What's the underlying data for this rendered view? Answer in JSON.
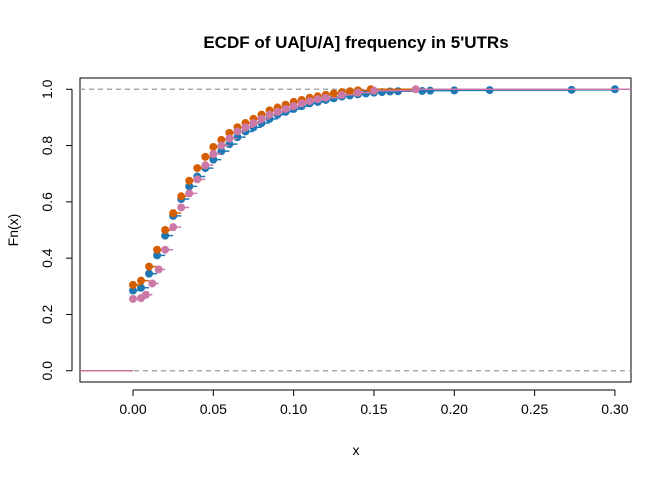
{
  "chart_data": {
    "type": "scatter",
    "subtype": "ecdf-step",
    "title": "ECDF of UA[U/A] frequency in 5'UTRs",
    "xlabel": "x",
    "ylabel": "Fn(x)",
    "xlim": [
      -0.033,
      0.31
    ],
    "ylim": [
      -0.04,
      1.04
    ],
    "xticks": [
      0.0,
      0.05,
      0.1,
      0.15,
      0.2,
      0.25,
      0.3
    ],
    "xtick_labels": [
      "0.00",
      "0.05",
      "0.10",
      "0.15",
      "0.20",
      "0.25",
      "0.30"
    ],
    "yticks": [
      0.0,
      0.2,
      0.4,
      0.6,
      0.8,
      1.0
    ],
    "ytick_labels": [
      "0.0",
      "0.2",
      "0.4",
      "0.6",
      "0.8",
      "1.0"
    ],
    "reference_lines": [
      0.0,
      1.0
    ],
    "grid": false,
    "legend": "none",
    "series": [
      {
        "color": "#1f77b4",
        "x": [
          0.0,
          0.005,
          0.01,
          0.015,
          0.02,
          0.025,
          0.03,
          0.035,
          0.04,
          0.045,
          0.05,
          0.055,
          0.06,
          0.065,
          0.07,
          0.075,
          0.08,
          0.085,
          0.09,
          0.095,
          0.1,
          0.105,
          0.11,
          0.115,
          0.12,
          0.125,
          0.13,
          0.135,
          0.14,
          0.145,
          0.15,
          0.155,
          0.16,
          0.165,
          0.18,
          0.185,
          0.2,
          0.222,
          0.273,
          0.3
        ],
        "y": [
          0.285,
          0.295,
          0.345,
          0.41,
          0.48,
          0.55,
          0.61,
          0.655,
          0.69,
          0.72,
          0.75,
          0.78,
          0.805,
          0.83,
          0.85,
          0.865,
          0.88,
          0.895,
          0.91,
          0.92,
          0.93,
          0.94,
          0.95,
          0.955,
          0.962,
          0.968,
          0.974,
          0.978,
          0.982,
          0.985,
          0.988,
          0.99,
          0.992,
          0.993,
          0.994,
          0.995,
          0.996,
          0.997,
          0.998,
          1.0
        ]
      },
      {
        "color": "#d55e00",
        "x": [
          0.0,
          0.005,
          0.01,
          0.015,
          0.02,
          0.025,
          0.03,
          0.035,
          0.04,
          0.045,
          0.05,
          0.055,
          0.06,
          0.065,
          0.07,
          0.075,
          0.08,
          0.085,
          0.09,
          0.095,
          0.1,
          0.105,
          0.11,
          0.115,
          0.12,
          0.125,
          0.13,
          0.135,
          0.14,
          0.148
        ],
        "y": [
          0.305,
          0.32,
          0.37,
          0.43,
          0.5,
          0.56,
          0.62,
          0.675,
          0.72,
          0.76,
          0.795,
          0.82,
          0.845,
          0.865,
          0.88,
          0.895,
          0.91,
          0.925,
          0.935,
          0.945,
          0.955,
          0.962,
          0.97,
          0.975,
          0.98,
          0.985,
          0.99,
          0.993,
          0.996,
          1.0
        ]
      },
      {
        "color": "#cc79a7",
        "x": [
          0.0,
          0.005,
          0.008,
          0.012,
          0.016,
          0.02,
          0.025,
          0.03,
          0.035,
          0.04,
          0.045,
          0.05,
          0.055,
          0.06,
          0.065,
          0.07,
          0.075,
          0.08,
          0.085,
          0.09,
          0.095,
          0.1,
          0.105,
          0.11,
          0.115,
          0.12,
          0.13,
          0.14,
          0.15,
          0.176
        ],
        "y": [
          0.255,
          0.258,
          0.27,
          0.31,
          0.36,
          0.43,
          0.51,
          0.58,
          0.63,
          0.68,
          0.73,
          0.77,
          0.8,
          0.825,
          0.85,
          0.865,
          0.88,
          0.895,
          0.91,
          0.92,
          0.93,
          0.94,
          0.95,
          0.958,
          0.965,
          0.97,
          0.98,
          0.988,
          0.995,
          1.0
        ]
      }
    ]
  }
}
